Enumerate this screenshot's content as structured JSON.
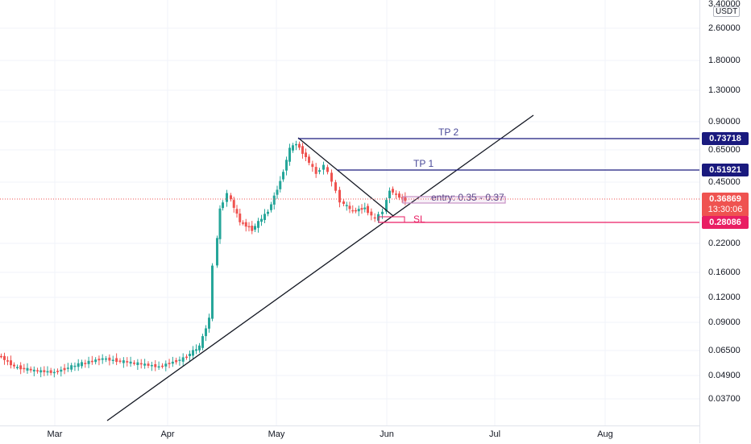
{
  "currency": "USDT",
  "price_ticks": [
    "3.40000",
    "2.60000",
    "1.80000",
    "1.30000",
    "0.90000",
    "0.65000",
    "0.45000",
    "0.22000",
    "0.16000",
    "0.12000",
    "0.09000",
    "0.06500",
    "0.04900",
    "0.03700"
  ],
  "time_ticks": [
    "Mar",
    "Apr",
    "May",
    "Jun",
    "Jul",
    "Aug"
  ],
  "tags": {
    "tp2": "0.73718",
    "tp1": "0.51921",
    "last_price": "0.36869",
    "countdown": "13:30:06",
    "sl": "0.28086"
  },
  "annotations": {
    "tp2": "TP 2",
    "tp1": "TP 1",
    "entry": "entry: 0.35 - 0.37",
    "sl": "SL"
  },
  "colors": {
    "up": "#26a69a",
    "down": "#ef5350",
    "tp": "#1a1a7e",
    "sl": "#e91e63",
    "entry_box": "#c792c6",
    "last_price": "#ef5350"
  }
}
